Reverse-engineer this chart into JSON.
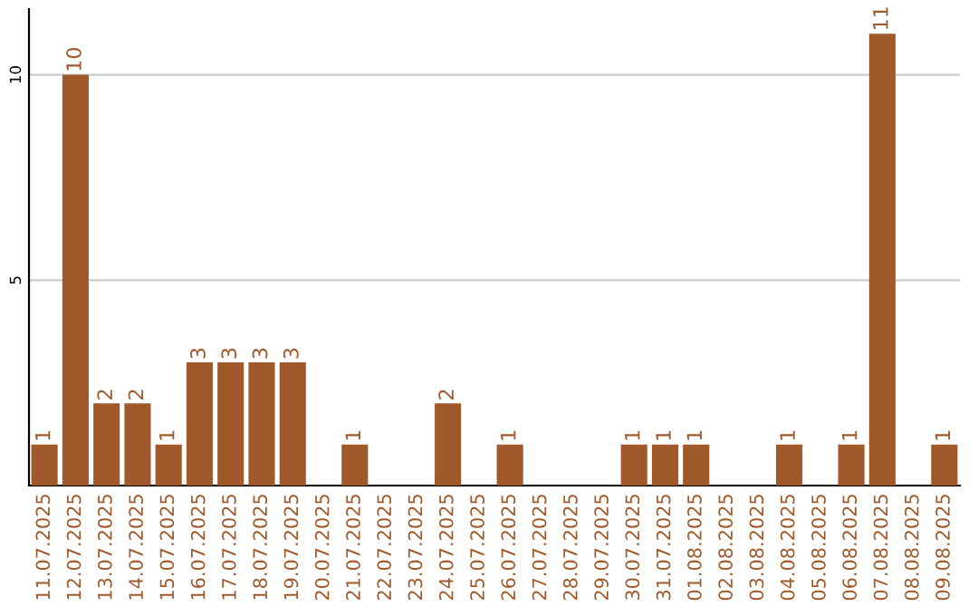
{
  "chart_data": {
    "type": "bar",
    "categories": [
      "11.07.2025",
      "12.07.2025",
      "13.07.2025",
      "14.07.2025",
      "15.07.2025",
      "16.07.2025",
      "17.07.2025",
      "18.07.2025",
      "19.07.2025",
      "20.07.2025",
      "21.07.2025",
      "22.07.2025",
      "23.07.2025",
      "24.07.2025",
      "25.07.2025",
      "26.07.2025",
      "27.07.2025",
      "28.07.2025",
      "29.07.2025",
      "30.07.2025",
      "31.07.2025",
      "01.08.2025",
      "02.08.2025",
      "03.08.2025",
      "04.08.2025",
      "05.08.2025",
      "06.08.2025",
      "07.08.2025",
      "08.08.2025",
      "09.08.2025"
    ],
    "values": [
      1,
      10,
      2,
      2,
      1,
      3,
      3,
      3,
      3,
      0,
      1,
      0,
      0,
      2,
      0,
      1,
      0,
      0,
      0,
      1,
      1,
      1,
      0,
      0,
      1,
      0,
      1,
      11,
      0,
      1
    ],
    "value_labels": [
      "1",
      "10",
      "2",
      "2",
      "1",
      "3",
      "3",
      "3",
      "3",
      null,
      "1",
      null,
      null,
      "2",
      null,
      "1",
      null,
      null,
      null,
      "1",
      "1",
      "1",
      null,
      null,
      "1",
      null,
      "1",
      "11",
      null,
      "1"
    ],
    "color": "#a0592a",
    "ylim": [
      0,
      11.6
    ],
    "yticks": [
      5,
      10
    ],
    "grid": "y"
  }
}
